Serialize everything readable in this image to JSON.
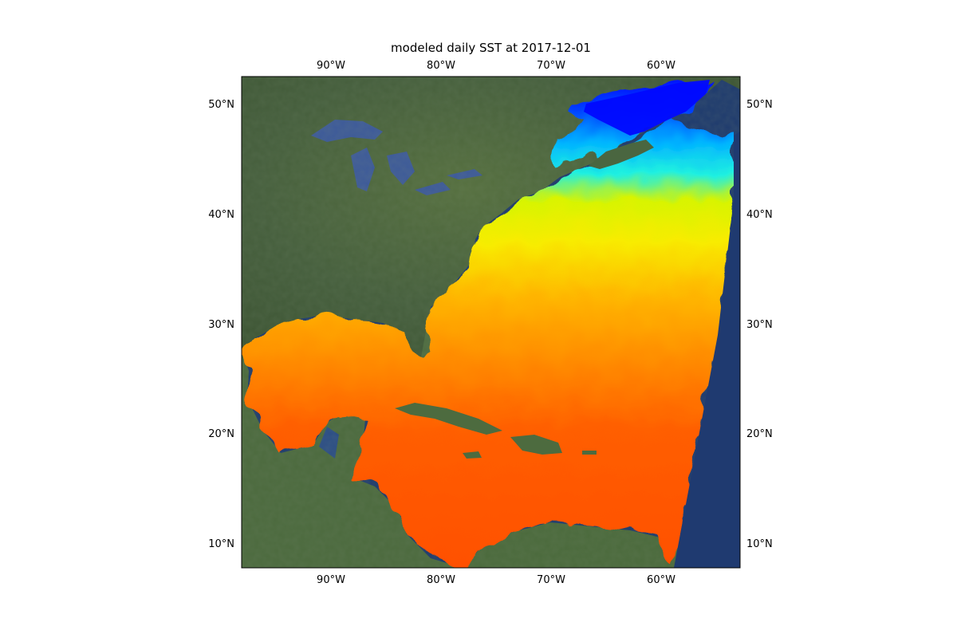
{
  "title": "modeled daily SST at 2017-12-01",
  "lon_ticks": [
    "90°W",
    "80°W",
    "70°W",
    "60°W"
  ],
  "lat_ticks": [
    "50°N",
    "40°N",
    "30°N",
    "20°N",
    "10°N"
  ],
  "colors": {
    "cold_sst": "#0010ff",
    "cool_sst": "#00c8ff",
    "mild_sst": "#f4f400",
    "warm_sst": "#ffaa00",
    "hot_sst": "#ff5a00",
    "land": "#4a6640",
    "ocean_basemap": "#1e3a6e",
    "lakes": "#3d5a9a"
  }
}
